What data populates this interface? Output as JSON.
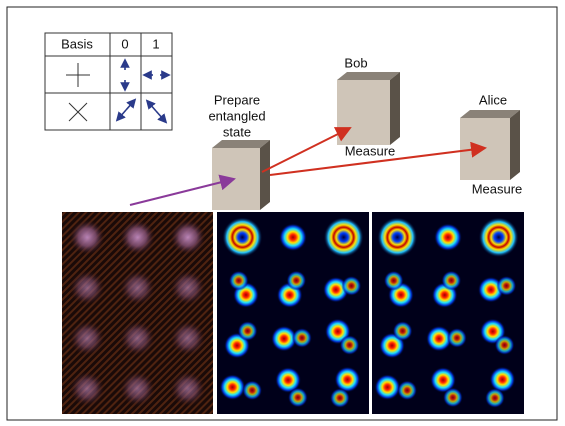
{
  "table": {
    "header": [
      "Basis",
      "0",
      "1"
    ]
  },
  "source": {
    "label_lines": [
      "Prepare",
      "entangled",
      "state"
    ]
  },
  "bob": {
    "name": "Bob",
    "action": "Measure"
  },
  "alice": {
    "name": "Alice",
    "action": "Measure"
  }
}
